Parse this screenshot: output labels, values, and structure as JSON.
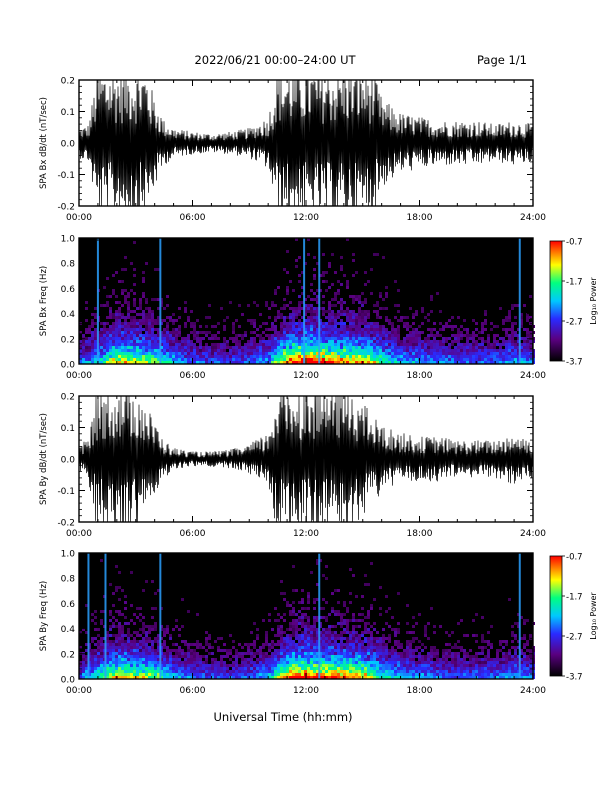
{
  "header": {
    "date_range": "2022/06/21  00:00–24:00 UT",
    "page": "Page 1/1"
  },
  "xaxis": {
    "label": "Universal Time (hh:mm)",
    "range": [
      0,
      24
    ],
    "ticks": [
      "00:00",
      "06:00",
      "12:00",
      "18:00",
      "24:00"
    ]
  },
  "colorbar": {
    "label": "Log₁₀ Power",
    "ticks": [
      "-0.7",
      "-1.7",
      "-2.7",
      "-3.7"
    ],
    "range": [
      -3.7,
      -0.7
    ],
    "colors": [
      "#000000",
      "#5a0080",
      "#2a2aff",
      "#00c8ff",
      "#00ff80",
      "#ffff00",
      "#ff8000",
      "#ff0000"
    ]
  },
  "chart_data": [
    {
      "type": "line",
      "id": "bx-waveform",
      "ylabel": "SPA Bx dB/dt (nT/sec)",
      "ylim": [
        -0.2,
        0.2
      ],
      "yticks": [
        "0.2",
        "0.1",
        "0.0",
        "-0.1",
        "-0.2"
      ],
      "xlim": [
        0,
        24
      ],
      "series": [
        {
          "x": [
            0,
            0.5,
            1.0,
            1.5,
            2.0,
            2.5,
            3.0,
            3.5,
            4.0,
            4.5,
            5.0,
            6.0,
            7.0,
            8.0,
            9.0,
            10.0,
            10.5,
            11.0,
            11.5,
            12.0,
            12.5,
            13.0,
            13.5,
            14.0,
            14.5,
            15.0,
            15.5,
            16.0,
            17.0,
            18.0,
            19.0,
            20.0,
            21.0,
            22.0,
            23.0,
            24.0
          ],
          "amplitude": [
            0.04,
            0.05,
            0.2,
            0.2,
            0.2,
            0.2,
            0.2,
            0.2,
            0.12,
            0.06,
            0.04,
            0.03,
            0.025,
            0.03,
            0.04,
            0.07,
            0.2,
            0.2,
            0.2,
            0.2,
            0.2,
            0.2,
            0.2,
            0.2,
            0.2,
            0.2,
            0.2,
            0.12,
            0.08,
            0.07,
            0.06,
            0.06,
            0.06,
            0.05,
            0.06,
            0.05
          ]
        }
      ]
    },
    {
      "type": "heatmap",
      "id": "bx-spectrogram",
      "ylabel": "SPA Bx Freq (Hz)",
      "ylim": [
        0,
        1.0
      ],
      "yticks": [
        "1.0",
        "0.8",
        "0.6",
        "0.4",
        "0.2",
        "0.0"
      ],
      "xlim": [
        0,
        24
      ],
      "activity_x": [
        0,
        1,
        2,
        3,
        4,
        5,
        6,
        7,
        8,
        9,
        10,
        11,
        12,
        13,
        14,
        15,
        16,
        17,
        18,
        19,
        20,
        21,
        22,
        23,
        24
      ],
      "activity": [
        0.4,
        0.55,
        0.85,
        0.75,
        0.7,
        0.5,
        0.4,
        0.35,
        0.35,
        0.4,
        0.5,
        0.95,
        1.0,
        0.95,
        0.9,
        0.85,
        0.65,
        0.5,
        0.45,
        0.45,
        0.4,
        0.4,
        0.4,
        0.5,
        0.4
      ],
      "bright_lines_x": [
        1.0,
        4.3,
        11.9,
        12.7,
        23.3
      ]
    },
    {
      "type": "line",
      "id": "by-waveform",
      "ylabel": "SPA By dB/dt (nT/sec)",
      "ylim": [
        -0.2,
        0.2
      ],
      "yticks": [
        "0.2",
        "0.1",
        "0.0",
        "-0.1",
        "-0.2"
      ],
      "xlim": [
        0,
        24
      ],
      "series": [
        {
          "x": [
            0,
            0.5,
            1.0,
            1.5,
            2.0,
            2.5,
            3.0,
            3.5,
            4.0,
            4.5,
            5.0,
            6.0,
            7.0,
            8.0,
            9.0,
            10.0,
            10.5,
            11.0,
            11.5,
            12.0,
            12.5,
            13.0,
            13.5,
            14.0,
            14.5,
            15.0,
            15.5,
            16.0,
            17.0,
            18.0,
            19.0,
            20.0,
            21.0,
            22.0,
            23.0,
            24.0
          ],
          "amplitude": [
            0.03,
            0.06,
            0.2,
            0.2,
            0.2,
            0.2,
            0.2,
            0.15,
            0.1,
            0.05,
            0.03,
            0.02,
            0.02,
            0.025,
            0.04,
            0.07,
            0.2,
            0.2,
            0.2,
            0.2,
            0.2,
            0.2,
            0.2,
            0.2,
            0.2,
            0.15,
            0.12,
            0.09,
            0.07,
            0.06,
            0.06,
            0.05,
            0.05,
            0.05,
            0.07,
            0.05
          ]
        }
      ]
    },
    {
      "type": "heatmap",
      "id": "by-spectrogram",
      "ylabel": "SPA By Freq (Hz)",
      "ylim": [
        0,
        1.0
      ],
      "yticks": [
        "1.0",
        "0.8",
        "0.6",
        "0.4",
        "0.2",
        "0.0"
      ],
      "xlim": [
        0,
        24
      ],
      "activity_x": [
        0,
        1,
        2,
        3,
        4,
        5,
        6,
        7,
        8,
        9,
        10,
        11,
        12,
        13,
        14,
        15,
        16,
        17,
        18,
        19,
        20,
        21,
        22,
        23,
        24
      ],
      "activity": [
        0.4,
        0.6,
        0.85,
        0.75,
        0.7,
        0.5,
        0.4,
        0.35,
        0.35,
        0.4,
        0.5,
        0.95,
        1.0,
        0.95,
        0.9,
        0.85,
        0.6,
        0.5,
        0.45,
        0.4,
        0.4,
        0.4,
        0.4,
        0.5,
        0.4
      ],
      "bright_lines_x": [
        0.5,
        1.4,
        4.3,
        12.7,
        23.3
      ]
    }
  ]
}
